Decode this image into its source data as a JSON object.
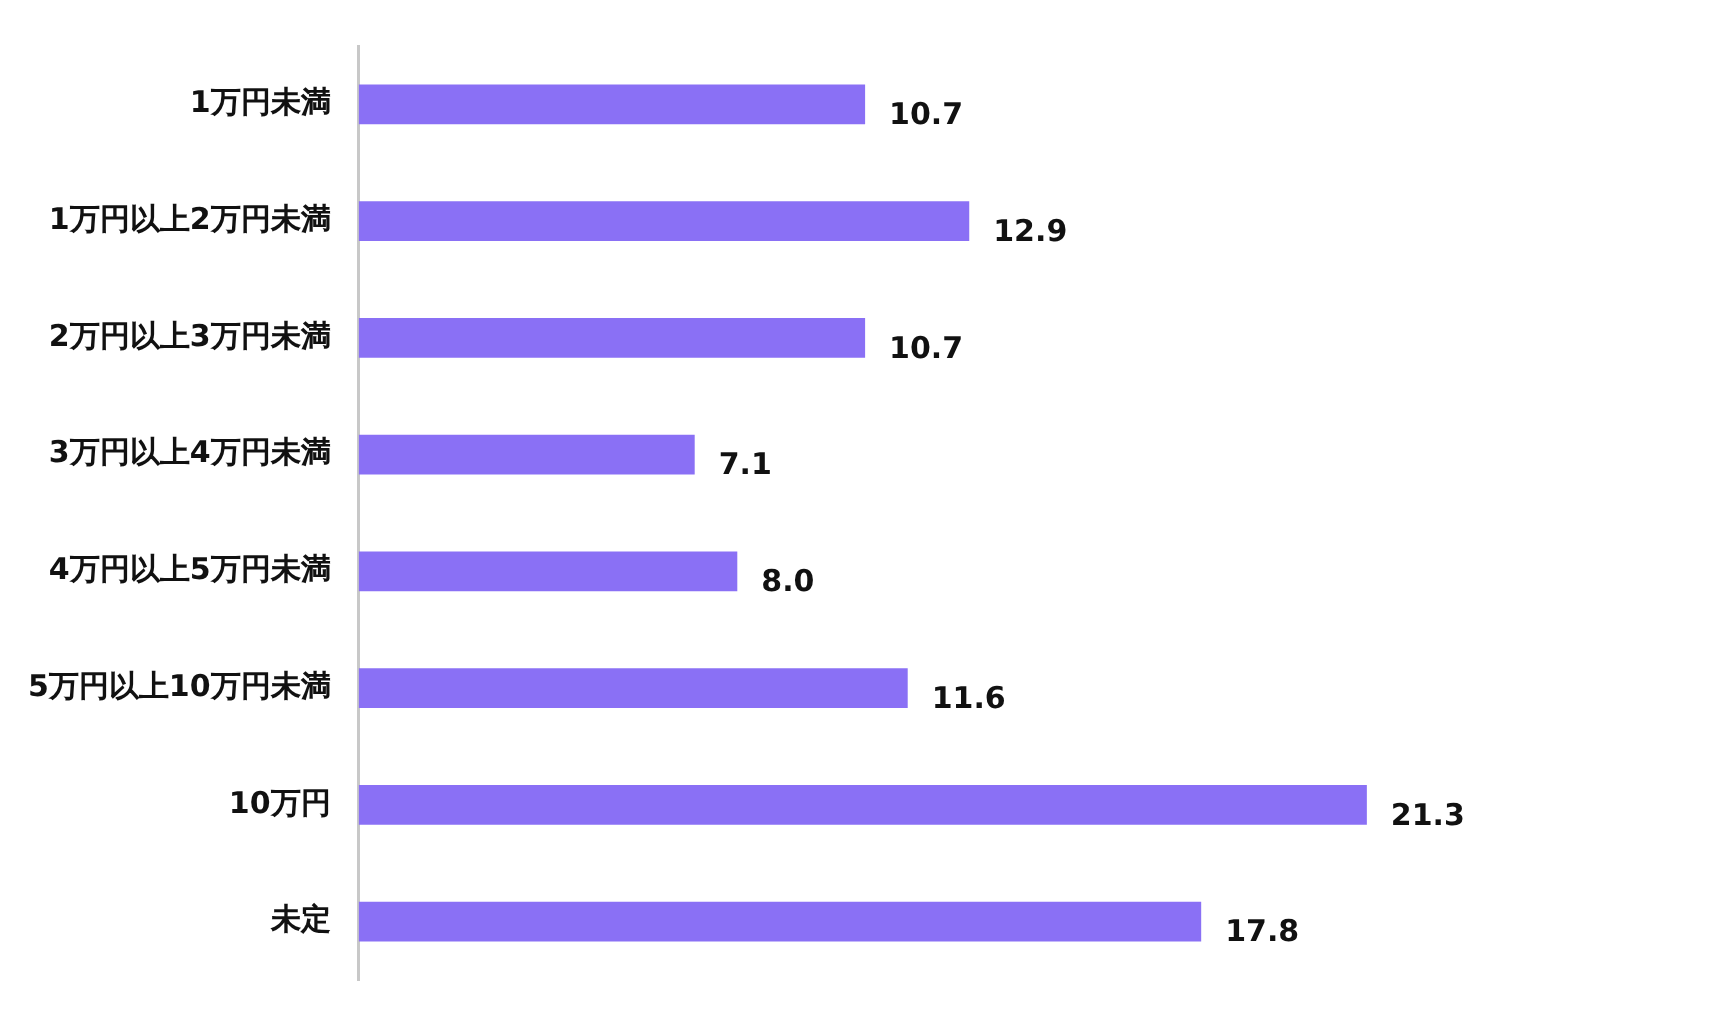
{
  "chart_data": {
    "type": "bar",
    "orientation": "horizontal",
    "categories": [
      "1万円未満",
      "1万円以上2万円未満",
      "2万円以上3万円未満",
      "3万円以上4万円未満",
      "4万円以上5万円未満",
      "5万円以上10万円未満",
      "10万円",
      "未定"
    ],
    "values": [
      10.7,
      12.9,
      10.7,
      7.1,
      8.0,
      11.6,
      21.3,
      17.8
    ],
    "value_labels": [
      "10.7",
      "12.9",
      "10.7",
      "7.1",
      "8.0",
      "11.6",
      "21.3",
      "17.8"
    ],
    "color": "#8a70f5",
    "tick_labels": "y",
    "legend": false
  }
}
